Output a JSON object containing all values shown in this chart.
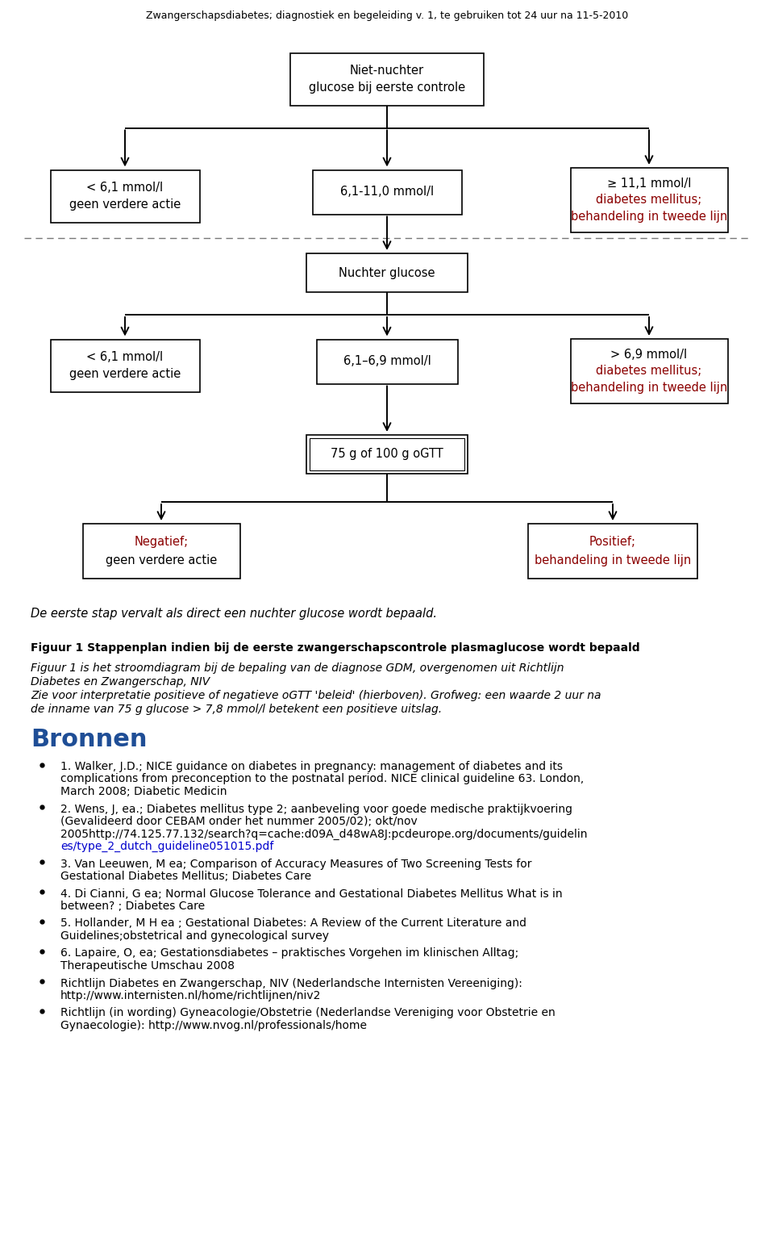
{
  "header": "Zwangerschapsdiabetes; diagnostiek en begeleiding v. 1, te gebruiken tot 24 uur na 11-5-2010",
  "fig_title": "Figuur 1 Stappenplan indien bij de eerste zwangerschapscontrole plasmaglucose wordt bepaald",
  "italic_note": "De eerste stap vervalt als direct een nuchter glucose wordt bepaald.",
  "bronnen_title": "Bronnen",
  "bronnen_color": "#1F4E96",
  "bg_color": "#ffffff",
  "box_color": "#ffffff",
  "box_edge_color": "#000000",
  "arrow_color": "#000000",
  "red_color": "#8B0000",
  "link_color": "#0000CC",
  "fig_note_lines": [
    "Figuur 1 is het stroomdiagram bij de bepaling van de diagnose GDM, overgenomen uit Richtlijn",
    "Diabetes en Zwangerschap, NIV",
    "Zie voor interpretatie positieve of negatieve oGTT 'beleid' (hierboven). Grofweg: een waarde 2 uur na",
    "de inname van 75 g glucose > 7,8 mmol/l betekent een positieve uitslag."
  ]
}
